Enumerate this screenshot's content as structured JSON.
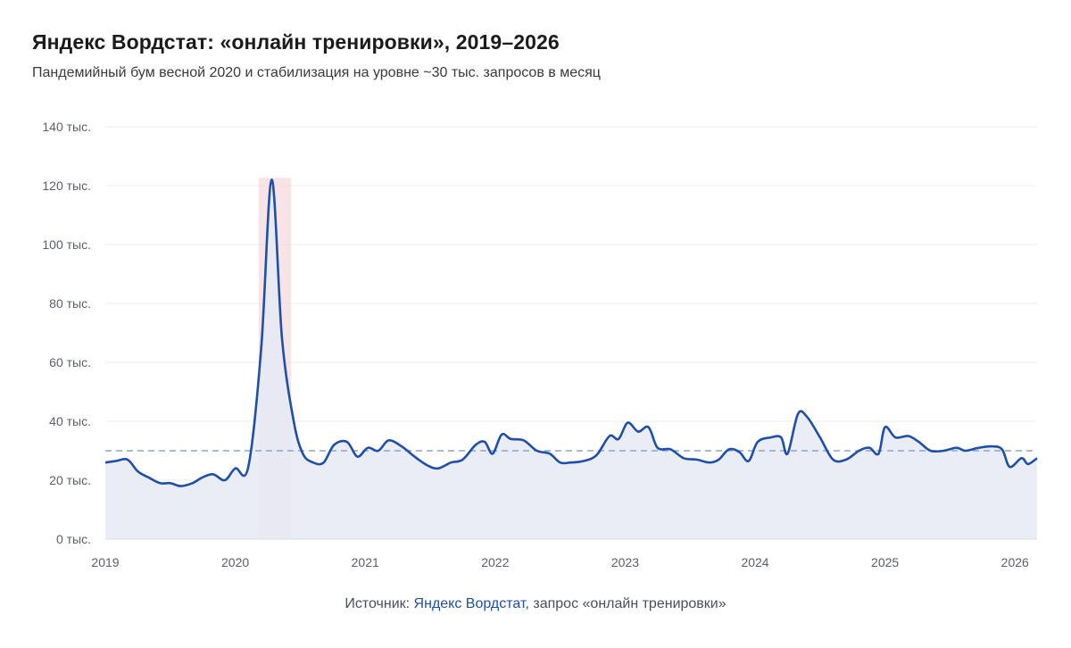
{
  "header": {
    "title": "Яндекс Вордстат: «онлайн тренировки», 2019–2026",
    "subtitle": "Пандемийный бум весной 2020 и стабилизация на уровне ~30 тыс. запросов в месяц"
  },
  "source": {
    "prefix": "Источник: ",
    "link_text": "Яндекс Вордстат",
    "suffix": ", запрос «онлайн тренировки»"
  },
  "colors": {
    "line": "#1f4fa8",
    "area": "#e6eaf5",
    "highlight": "#f5d7db",
    "reference": "#8fa3c7",
    "grid": "#ececec"
  },
  "chart_data": {
    "type": "area",
    "x_unit": "year",
    "xlim": [
      2019,
      2026.17
    ],
    "ylim": [
      0,
      140000
    ],
    "y_ticks": [
      {
        "value": 0,
        "label": "0 тыс."
      },
      {
        "value": 20000,
        "label": "20 тыс."
      },
      {
        "value": 40000,
        "label": "40 тыс."
      },
      {
        "value": 60000,
        "label": "60 тыс."
      },
      {
        "value": 80000,
        "label": "80 тыс."
      },
      {
        "value": 100000,
        "label": "100 тыс."
      },
      {
        "value": 120000,
        "label": "120 тыс."
      },
      {
        "value": 140000,
        "label": "140 тыс."
      }
    ],
    "x_ticks": [
      {
        "value": 2019,
        "label": "2019"
      },
      {
        "value": 2020,
        "label": "2020"
      },
      {
        "value": 2021,
        "label": "2021"
      },
      {
        "value": 2022,
        "label": "2022"
      },
      {
        "value": 2023,
        "label": "2023"
      },
      {
        "value": 2024,
        "label": "2024"
      },
      {
        "value": 2025,
        "label": "2025"
      },
      {
        "value": 2026,
        "label": "2026"
      }
    ],
    "highlight_range": [
      2020.18,
      2020.43
    ],
    "reference_line": 30000,
    "grid": true,
    "series": [
      {
        "points": [
          [
            2019.0,
            26000
          ],
          [
            2019.08,
            26500
          ],
          [
            2019.17,
            27000
          ],
          [
            2019.25,
            23000
          ],
          [
            2019.33,
            21000
          ],
          [
            2019.42,
            19000
          ],
          [
            2019.5,
            19000
          ],
          [
            2019.58,
            18000
          ],
          [
            2019.67,
            19000
          ],
          [
            2019.75,
            21000
          ],
          [
            2019.83,
            22000
          ],
          [
            2019.92,
            20000
          ],
          [
            2020.0,
            24000
          ],
          [
            2020.1,
            24500
          ],
          [
            2020.2,
            65000
          ],
          [
            2020.28,
            122000
          ],
          [
            2020.36,
            68000
          ],
          [
            2020.45,
            40000
          ],
          [
            2020.52,
            29000
          ],
          [
            2020.6,
            26000
          ],
          [
            2020.68,
            26000
          ],
          [
            2020.76,
            32000
          ],
          [
            2020.86,
            33000
          ],
          [
            2020.94,
            28000
          ],
          [
            2021.02,
            31000
          ],
          [
            2021.1,
            30000
          ],
          [
            2021.18,
            33500
          ],
          [
            2021.28,
            31500
          ],
          [
            2021.38,
            28000
          ],
          [
            2021.48,
            25000
          ],
          [
            2021.56,
            24000
          ],
          [
            2021.66,
            26000
          ],
          [
            2021.75,
            27000
          ],
          [
            2021.85,
            32000
          ],
          [
            2021.92,
            33000
          ],
          [
            2021.98,
            29000
          ],
          [
            2022.05,
            35500
          ],
          [
            2022.12,
            34000
          ],
          [
            2022.22,
            33500
          ],
          [
            2022.32,
            30000
          ],
          [
            2022.42,
            29000
          ],
          [
            2022.5,
            26000
          ],
          [
            2022.58,
            26000
          ],
          [
            2022.68,
            26500
          ],
          [
            2022.78,
            28500
          ],
          [
            2022.88,
            35000
          ],
          [
            2022.95,
            34000
          ],
          [
            2023.02,
            39500
          ],
          [
            2023.1,
            36500
          ],
          [
            2023.18,
            38000
          ],
          [
            2023.25,
            31000
          ],
          [
            2023.35,
            30500
          ],
          [
            2023.45,
            27500
          ],
          [
            2023.55,
            27000
          ],
          [
            2023.65,
            26000
          ],
          [
            2023.72,
            27000
          ],
          [
            2023.8,
            30500
          ],
          [
            2023.88,
            29500
          ],
          [
            2023.95,
            26500
          ],
          [
            2024.02,
            33000
          ],
          [
            2024.12,
            34500
          ],
          [
            2024.2,
            34500
          ],
          [
            2024.25,
            29000
          ],
          [
            2024.33,
            42500
          ],
          [
            2024.4,
            41500
          ],
          [
            2024.5,
            34500
          ],
          [
            2024.6,
            27000
          ],
          [
            2024.7,
            27000
          ],
          [
            2024.8,
            30000
          ],
          [
            2024.88,
            31000
          ],
          [
            2024.95,
            29000
          ],
          [
            2025.0,
            38000
          ],
          [
            2025.08,
            34500
          ],
          [
            2025.18,
            35000
          ],
          [
            2025.26,
            33000
          ],
          [
            2025.35,
            30000
          ],
          [
            2025.45,
            30000
          ],
          [
            2025.55,
            31000
          ],
          [
            2025.62,
            30000
          ],
          [
            2025.72,
            31000
          ],
          [
            2025.82,
            31500
          ],
          [
            2025.9,
            30500
          ],
          [
            2025.96,
            24500
          ],
          [
            2026.05,
            27500
          ],
          [
            2026.1,
            25500
          ],
          [
            2026.17,
            27500
          ]
        ]
      }
    ]
  }
}
